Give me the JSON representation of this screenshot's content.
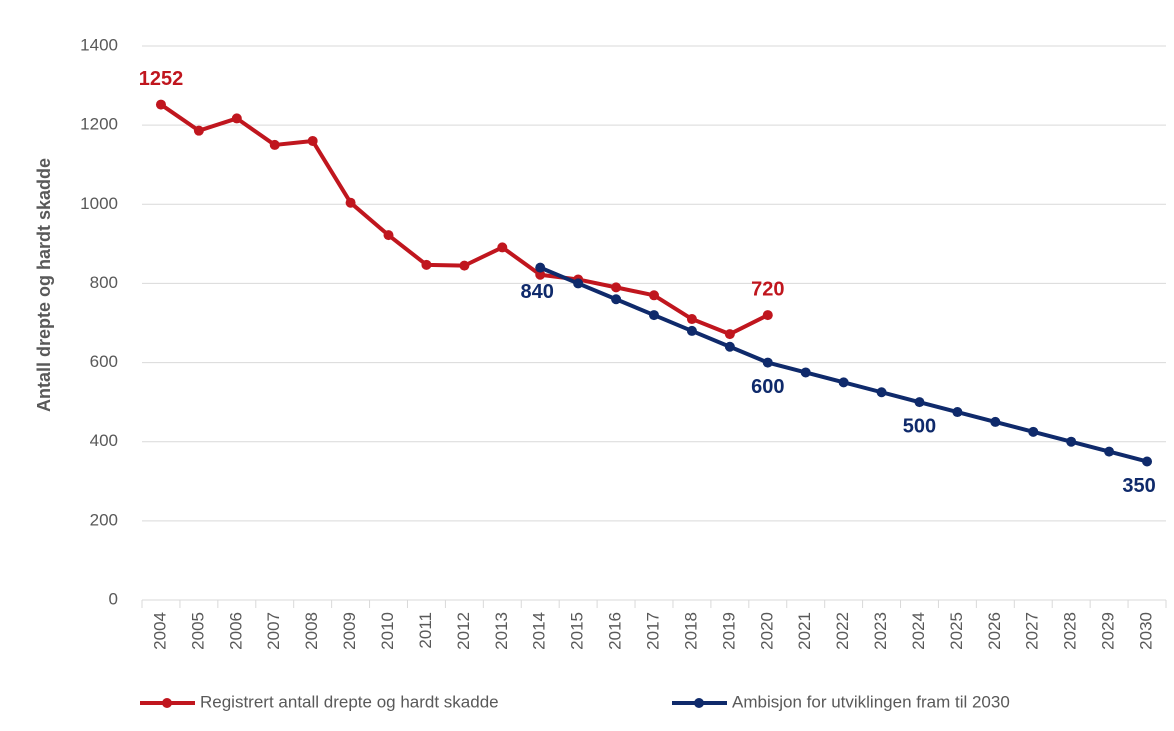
{
  "chart_data": {
    "type": "line",
    "y_label": "Antall drepte og hardt skadde",
    "categories": [
      "2004",
      "2005",
      "2006",
      "2007",
      "2008",
      "2009",
      "2010",
      "2011",
      "2012",
      "2013",
      "2014",
      "2015",
      "2016",
      "2017",
      "2018",
      "2019",
      "2020",
      "2021",
      "2022",
      "2023",
      "2024",
      "2025",
      "2026",
      "2027",
      "2028",
      "2029",
      "2030"
    ],
    "series": [
      {
        "name": "Registrert antall drepte og hardt skadde",
        "color": "#c0161e",
        "values": [
          1252,
          1186,
          1217,
          1150,
          1160,
          1004,
          922,
          847,
          845,
          891,
          822,
          810,
          790,
          770,
          710,
          672,
          720,
          null,
          null,
          null,
          null,
          null,
          null,
          null,
          null,
          null,
          null
        ],
        "value_labels": [
          "1252",
          null,
          null,
          null,
          null,
          null,
          null,
          null,
          null,
          null,
          null,
          null,
          null,
          null,
          null,
          null,
          "720",
          null,
          null,
          null,
          null,
          null,
          null,
          null,
          null,
          null,
          null
        ]
      },
      {
        "name": "Ambisjon for utviklingen fram til 2030",
        "color": "#0f2a6b",
        "values": [
          null,
          null,
          null,
          null,
          null,
          null,
          null,
          null,
          null,
          null,
          840,
          800,
          760,
          720,
          680,
          640,
          600,
          575,
          550,
          525,
          500,
          475,
          450,
          425,
          400,
          375,
          350
        ],
        "value_labels": [
          null,
          null,
          null,
          null,
          null,
          null,
          null,
          null,
          null,
          null,
          "840",
          null,
          null,
          null,
          null,
          null,
          "600",
          null,
          null,
          null,
          "500",
          null,
          null,
          null,
          null,
          null,
          "350"
        ]
      }
    ],
    "ylim": [
      0,
      1400
    ],
    "yticks": [
      0,
      200,
      400,
      600,
      800,
      1000,
      1200,
      1400
    ],
    "grid": true
  }
}
